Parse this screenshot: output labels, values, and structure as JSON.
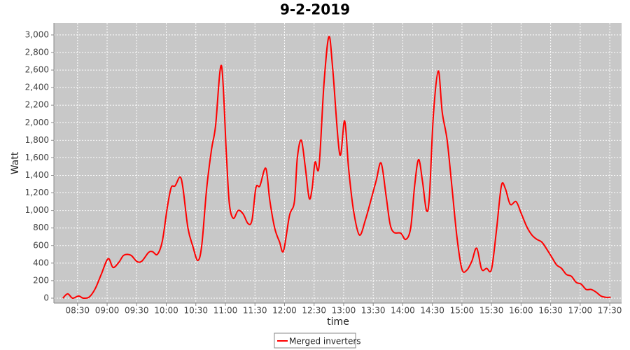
{
  "chart_data": {
    "type": "line",
    "title": "9-2-2019",
    "x_label": "time",
    "y_label": "Watt",
    "x": [
      "08:15",
      "08:20",
      "08:25",
      "08:31",
      "08:36",
      "08:42",
      "08:48",
      "08:54",
      "09:01",
      "09:06",
      "09:12",
      "09:17",
      "09:24",
      "09:30",
      "09:35",
      "09:42",
      "09:46",
      "09:51",
      "09:56",
      "10:01",
      "10:05",
      "10:09",
      "10:14",
      "10:17",
      "10:22",
      "10:27",
      "10:32",
      "10:36",
      "10:41",
      "10:46",
      "10:50",
      "10:56",
      "11:01",
      "11:04",
      "11:08",
      "11:13",
      "11:18",
      "11:23",
      "11:27",
      "11:31",
      "11:35",
      "11:41",
      "11:45",
      "11:50",
      "11:55",
      "11:59",
      "12:05",
      "12:10",
      "12:13",
      "12:17",
      "12:21",
      "12:25",
      "12:28",
      "12:31",
      "12:35",
      "12:40",
      "12:45",
      "12:49",
      "12:56",
      "13:01",
      "13:05",
      "13:10",
      "13:16",
      "13:22",
      "13:27",
      "13:33",
      "13:38",
      "13:43",
      "13:47",
      "13:51",
      "13:58",
      "14:03",
      "14:08",
      "14:12",
      "14:16",
      "14:20",
      "14:24",
      "14:27",
      "14:31",
      "14:36",
      "14:40",
      "14:45",
      "14:50",
      "14:55",
      "15:00",
      "15:05",
      "15:10",
      "15:15",
      "15:20",
      "15:25",
      "15:30",
      "15:35",
      "15:40",
      "15:44",
      "15:49",
      "15:55",
      "16:00",
      "16:06",
      "16:11",
      "16:16",
      "16:21",
      "16:26",
      "16:31",
      "16:36",
      "16:41",
      "16:46",
      "16:51",
      "16:56",
      "17:01",
      "17:06",
      "17:11",
      "17:16",
      "17:21",
      "17:26",
      "17:31"
    ],
    "series": [
      {
        "name": "Merged inverters",
        "color": "#ff0000",
        "values": [
          0,
          50,
          0,
          25,
          0,
          15,
          110,
          270,
          450,
          350,
          410,
          490,
          490,
          420,
          420,
          520,
          530,
          500,
          650,
          1030,
          1260,
          1280,
          1380,
          1250,
          800,
          590,
          430,
          600,
          1250,
          1700,
          1960,
          2650,
          1640,
          1080,
          910,
          1000,
          960,
          850,
          890,
          1260,
          1280,
          1480,
          1120,
          800,
          640,
          540,
          940,
          1100,
          1600,
          1800,
          1500,
          1140,
          1250,
          1550,
          1500,
          2440,
          2980,
          2600,
          1640,
          2020,
          1480,
          1000,
          720,
          890,
          1090,
          1340,
          1540,
          1170,
          850,
          750,
          740,
          670,
          800,
          1280,
          1580,
          1330,
          1000,
          1160,
          2080,
          2590,
          2120,
          1800,
          1250,
          690,
          330,
          320,
          420,
          570,
          330,
          340,
          330,
          770,
          1280,
          1250,
          1070,
          1100,
          970,
          810,
          720,
          670,
          640,
          560,
          470,
          380,
          340,
          270,
          250,
          180,
          160,
          100,
          100,
          70,
          25,
          10,
          10
        ]
      }
    ],
    "xlim": [
      "08:06",
      "17:42"
    ],
    "xticks": [
      "08:30",
      "09:00",
      "09:30",
      "10:00",
      "10:30",
      "11:00",
      "11:30",
      "12:00",
      "12:30",
      "13:00",
      "13:30",
      "14:00",
      "14:30",
      "15:00",
      "15:30",
      "16:00",
      "16:30",
      "17:00",
      "17:30"
    ],
    "ylim": [
      -56,
      3135
    ],
    "yticks": [
      0,
      200,
      400,
      600,
      800,
      {
        "value": 1000,
        "label": "1,000"
      },
      {
        "value": 1200,
        "label": "1,200"
      },
      {
        "value": 1400,
        "label": "1,400"
      },
      {
        "value": 1600,
        "label": "1,600"
      },
      {
        "value": 1800,
        "label": "1,800"
      },
      {
        "value": 2000,
        "label": "2,000"
      },
      {
        "value": 2200,
        "label": "2,200"
      },
      {
        "value": 2400,
        "label": "2,400"
      },
      {
        "value": 2600,
        "label": "2,600"
      },
      {
        "value": 2800,
        "label": "2,800"
      },
      {
        "value": 3000,
        "label": "3,000"
      }
    ],
    "grid": true,
    "legend": "bottom"
  }
}
